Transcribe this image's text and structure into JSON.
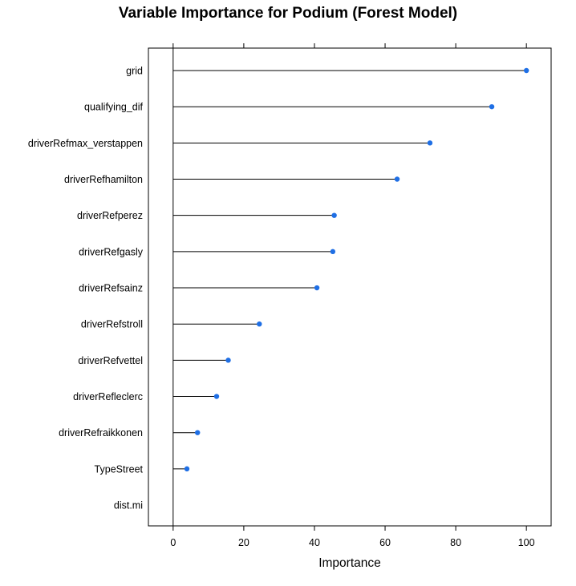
{
  "chart_data": {
    "type": "lollipop",
    "title": "Variable Importance for Podium (Forest Model)",
    "xlabel": "Importance",
    "ylabel": "",
    "xlim": [
      -7,
      107
    ],
    "xticks": [
      0,
      20,
      40,
      60,
      80,
      100
    ],
    "grid": false,
    "categories": [
      "grid",
      "qualifying_dif",
      "driverRefmax_verstappen",
      "driverRefhamilton",
      "driverRefperez",
      "driverRefgasly",
      "driverRefsainz",
      "driverRefstroll",
      "driverRefvettel",
      "driverRefleclerc",
      "driverRefraikkonen",
      "TypeStreet",
      "dist.mi"
    ],
    "values": [
      100,
      90.2,
      72.7,
      63.4,
      45.6,
      45.2,
      40.7,
      24.4,
      15.6,
      12.3,
      6.9,
      3.9,
      0
    ],
    "colors": {
      "point": "#1f6fe5",
      "line": "#000000"
    }
  }
}
